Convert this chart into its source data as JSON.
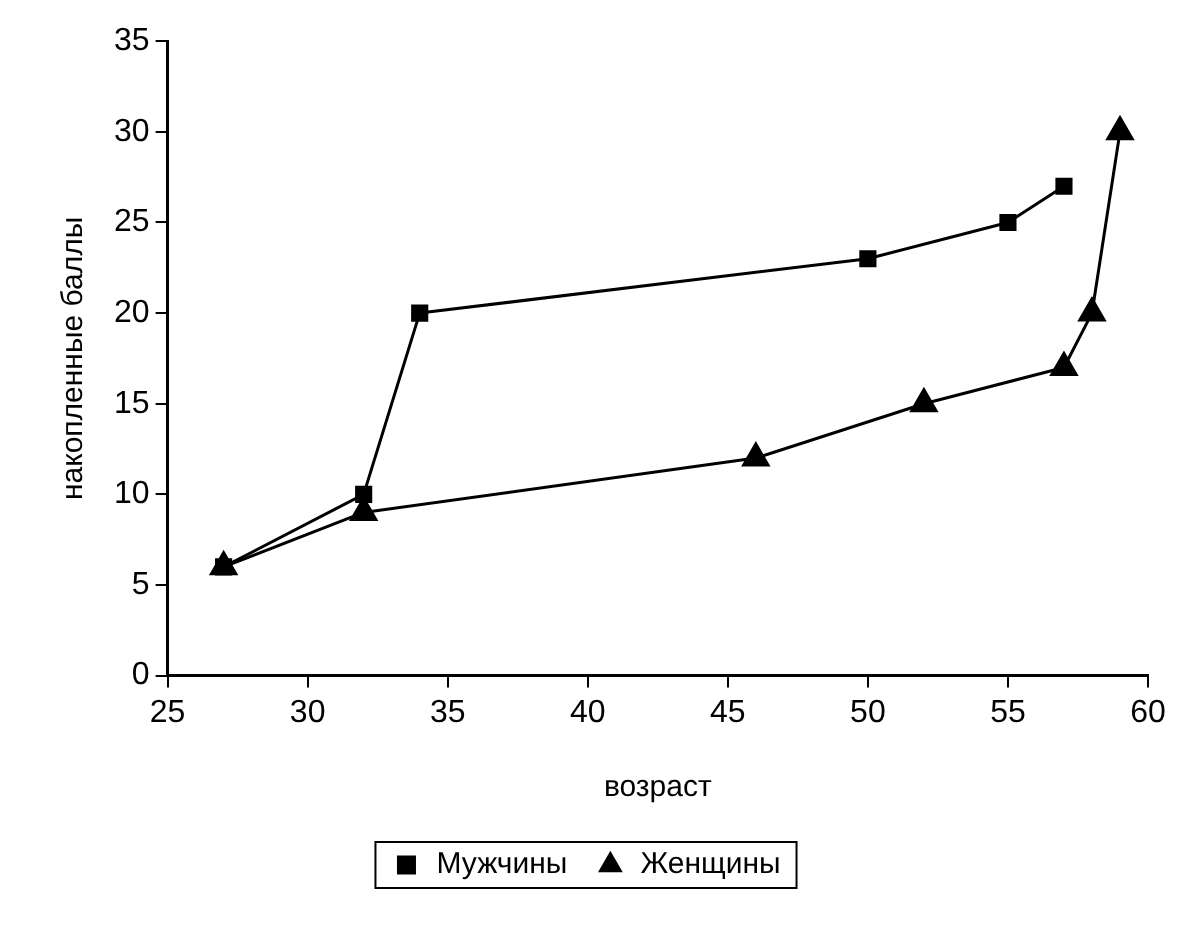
{
  "chart_data": {
    "type": "line",
    "xlabel": "возраст",
    "ylabel": "накопленные баллы",
    "xlim": [
      25,
      60
    ],
    "xticks": [
      25,
      30,
      35,
      40,
      45,
      50,
      55,
      60
    ],
    "ylim": [
      0,
      35
    ],
    "yticks": [
      0,
      5,
      10,
      15,
      20,
      25,
      30,
      35
    ],
    "grid": false,
    "legend": "bottom",
    "line_style": "solid",
    "series": [
      {
        "name": "Мужчины",
        "color": "#000000",
        "marker": "square",
        "x": [
          27,
          32,
          34,
          50,
          55,
          57
        ],
        "values": [
          6,
          10,
          20,
          23,
          25,
          27
        ]
      },
      {
        "name": "Женщины",
        "color": "#000000",
        "marker": "triangle",
        "x": [
          27,
          32,
          46,
          52,
          57,
          58,
          59
        ],
        "values": [
          6,
          9,
          12,
          15,
          17,
          20,
          30
        ]
      }
    ]
  }
}
